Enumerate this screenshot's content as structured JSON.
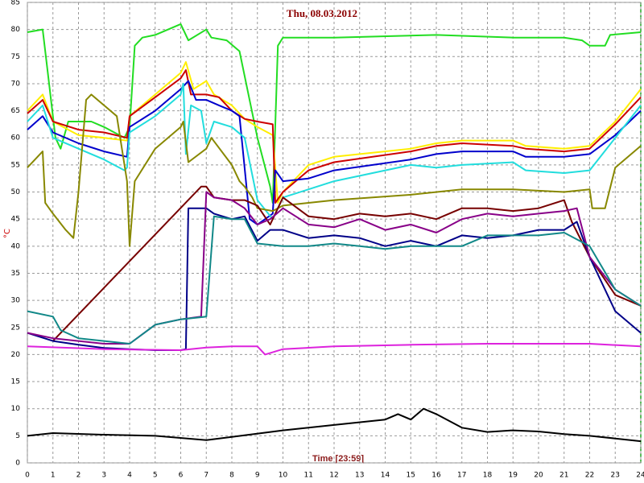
{
  "chart_data": {
    "type": "line",
    "title": "Thu, 08.03.2012",
    "x_label": "Time [23:59]",
    "y_label": "°C",
    "xlim": [
      0,
      24
    ],
    "ylim": [
      0,
      85
    ],
    "xticks": [
      0,
      1,
      2,
      3,
      4,
      5,
      6,
      7,
      8,
      9,
      10,
      11,
      12,
      13,
      14,
      15,
      16,
      17,
      18,
      19,
      20,
      21,
      22,
      23,
      24
    ],
    "yticks": [
      0,
      5,
      10,
      15,
      20,
      25,
      30,
      35,
      40,
      45,
      50,
      55,
      60,
      65,
      70,
      75,
      80,
      85
    ],
    "grid": true,
    "series": [
      {
        "color": "#22dd22",
        "x": [
          0,
          0.6,
          0.8,
          1.1,
          1.3,
          1.6,
          2.5,
          3,
          3.8,
          4,
          4.2,
          4.5,
          5,
          6,
          6.3,
          7,
          7.2,
          7.8,
          8.3,
          9,
          9.5,
          9.6,
          9.8,
          10,
          12,
          16,
          19,
          21,
          21.7,
          22,
          22.6,
          22.8,
          24
        ],
        "values": [
          79.5,
          80,
          72,
          60,
          58,
          63,
          63,
          62,
          60,
          62,
          77,
          78.5,
          79,
          81,
          78,
          80,
          78.5,
          78,
          76,
          60,
          51,
          48,
          77,
          78.5,
          78.5,
          79,
          78.5,
          78.5,
          78,
          77,
          77,
          79,
          79.5
        ]
      },
      {
        "color": "#ffee00",
        "x": [
          0,
          0.6,
          1,
          2,
          3,
          3.9,
          4,
          5,
          6,
          6.2,
          6.5,
          7,
          7.3,
          8,
          8.5,
          9,
          9.6,
          9.8,
          10,
          11,
          12,
          15,
          16,
          17,
          19,
          19.5,
          21,
          22,
          23,
          24
        ],
        "values": [
          65,
          68,
          63,
          60.5,
          60,
          59.5,
          64,
          68,
          72,
          74,
          69,
          70.5,
          68,
          66,
          63.5,
          62,
          60.5,
          48,
          50,
          55,
          56.5,
          58,
          59,
          59.5,
          59.5,
          58.5,
          58,
          58.5,
          63,
          69
        ]
      },
      {
        "color": "#cc0000",
        "x": [
          0,
          0.6,
          1,
          2,
          3,
          3.9,
          4,
          5,
          6,
          6.2,
          6.4,
          7,
          7.5,
          8,
          8.5,
          9,
          9.6,
          9.7,
          10,
          11,
          12,
          15,
          16,
          17,
          19,
          19.5,
          21,
          22,
          23,
          24
        ],
        "values": [
          64.5,
          67,
          63,
          61.5,
          61,
          60,
          64,
          67.5,
          71,
          72.5,
          68,
          68,
          67.5,
          65,
          63.5,
          63,
          62.5,
          48,
          50,
          54,
          55.5,
          57.5,
          58.5,
          59,
          58.5,
          58,
          57.5,
          58,
          62.5,
          67.5
        ]
      },
      {
        "color": "#0000cc",
        "x": [
          0,
          0.6,
          1,
          2,
          3,
          3.9,
          4,
          5,
          6,
          6.3,
          6.6,
          7,
          7.5,
          8,
          8.3,
          8.7,
          9,
          9.6,
          9.7,
          10,
          11,
          12,
          15,
          16,
          17,
          19,
          19.5,
          21,
          22,
          23,
          24
        ],
        "values": [
          61.5,
          64,
          61,
          59,
          57.5,
          56.5,
          62,
          65,
          69,
          70.5,
          67,
          67,
          66,
          65,
          64,
          45,
          44,
          46,
          54,
          52,
          52.5,
          54,
          56,
          57,
          57.5,
          57.5,
          56.5,
          56.5,
          57,
          60.5,
          65
        ]
      },
      {
        "color": "#22dddd",
        "x": [
          0,
          0.6,
          1,
          2,
          3,
          3.8,
          3.9,
          4,
          5,
          6,
          6.1,
          6.2,
          6.4,
          6.8,
          7,
          7.3,
          8,
          8.5,
          9,
          9.6,
          10,
          11,
          12,
          15,
          16,
          17,
          19,
          19.5,
          21,
          22,
          23,
          24
        ],
        "values": [
          63,
          66,
          60,
          58,
          56,
          54,
          54.5,
          61,
          64,
          68,
          70,
          57,
          66,
          65,
          59,
          63,
          62,
          60,
          48.5,
          45,
          49,
          50.5,
          52,
          55,
          54.5,
          55,
          55.5,
          54,
          53.5,
          54,
          60,
          66
        ]
      },
      {
        "color": "#888800",
        "x": [
          0,
          0.6,
          0.7,
          1,
          1.5,
          1.8,
          2,
          2.3,
          2.5,
          3,
          3.5,
          3.9,
          4,
          4.2,
          5,
          6,
          6.1,
          6.3,
          7,
          7.2,
          8,
          8.3,
          8.5,
          8.8,
          9,
          9.6,
          10,
          11,
          12,
          15,
          17,
          19,
          21,
          22,
          22.1,
          22.6,
          23,
          24
        ],
        "values": [
          54.5,
          57.5,
          48,
          46,
          43,
          41.5,
          50,
          67,
          68,
          66,
          64,
          52,
          40,
          52,
          58,
          62,
          63,
          55.5,
          58,
          60,
          55,
          52,
          51,
          49,
          47,
          46.5,
          47.5,
          48,
          48.5,
          49.5,
          50.5,
          50.5,
          50,
          50.5,
          47,
          47,
          54.5,
          58.5
        ]
      },
      {
        "color": "#770000",
        "x": [
          1,
          6.8,
          7,
          7.3,
          8,
          8.5,
          9,
          9.5,
          10,
          11,
          12,
          13,
          14,
          15,
          16,
          17,
          18,
          19,
          20,
          21,
          21.3,
          22,
          23,
          24
        ],
        "values": [
          22.5,
          51,
          51,
          49,
          48.5,
          48.5,
          47.5,
          44,
          49,
          45.5,
          45,
          46,
          45.5,
          46,
          45,
          47,
          47,
          46.5,
          47,
          48.5,
          44.5,
          38,
          31,
          29
        ]
      },
      {
        "color": "#000088",
        "x": [
          0,
          1,
          2,
          3,
          4,
          5,
          6,
          6.2,
          6.3,
          7,
          7.3,
          8,
          8.5,
          9,
          9.5,
          10,
          11,
          12,
          13,
          14,
          15,
          16,
          17,
          18,
          19,
          20,
          21,
          21.5,
          22,
          23,
          24
        ],
        "values": [
          24,
          22.5,
          21.8,
          21.2,
          21,
          20.8,
          20.8,
          21,
          47,
          47,
          46,
          45,
          45.5,
          41,
          43,
          43,
          41.5,
          42,
          41.5,
          40,
          41,
          40,
          42,
          41.5,
          42,
          43,
          43,
          44.5,
          38,
          28,
          24
        ]
      },
      {
        "color": "#880088",
        "x": [
          0,
          1,
          2,
          3,
          4,
          5,
          6,
          6.8,
          7,
          7.3,
          8,
          8.5,
          9,
          9.5,
          10,
          11,
          12,
          13,
          14,
          15,
          16,
          17,
          18,
          19,
          20,
          21,
          21.5,
          22,
          23,
          24
        ],
        "values": [
          24,
          23,
          22.5,
          22,
          22,
          25.5,
          26.5,
          27,
          50,
          49,
          48.5,
          47,
          44,
          45,
          47,
          44,
          43.5,
          45,
          43,
          44,
          42.5,
          45,
          46,
          45.5,
          46,
          46.5,
          47,
          38,
          32,
          29
        ]
      },
      {
        "color": "#118888",
        "x": [
          0,
          1,
          1.3,
          2,
          3,
          4,
          5,
          6,
          7,
          7.3,
          8,
          8.5,
          9,
          10,
          11,
          12,
          13,
          14,
          15,
          16,
          17,
          18,
          19,
          20,
          21,
          22,
          23,
          24
        ],
        "values": [
          28,
          27,
          24.5,
          23,
          22.5,
          22,
          25.5,
          26.5,
          27,
          45.5,
          45,
          45,
          40.5,
          40,
          40,
          40.5,
          40,
          39.5,
          40,
          40,
          40,
          42,
          42,
          42,
          42.5,
          40,
          32,
          29
        ]
      },
      {
        "color": "#dd22dd",
        "x": [
          0,
          3,
          6,
          7,
          8,
          9,
          9.3,
          10,
          12,
          15,
          18,
          21,
          22,
          24
        ],
        "values": [
          21.5,
          21,
          20.8,
          21.3,
          21.5,
          21.5,
          20,
          21,
          21.5,
          21.8,
          22,
          22,
          22,
          21.5
        ]
      },
      {
        "color": "#000000",
        "x": [
          0,
          1,
          3,
          5,
          7,
          8,
          10,
          12,
          14,
          14.5,
          15,
          15.5,
          16,
          17,
          18,
          19,
          20,
          21,
          22,
          23,
          24
        ],
        "values": [
          5,
          5.5,
          5.2,
          5,
          4.2,
          4.8,
          6,
          7,
          8,
          9,
          8,
          10,
          9,
          6.5,
          5.7,
          6,
          5.8,
          5.3,
          5,
          4.5,
          4
        ]
      }
    ]
  }
}
